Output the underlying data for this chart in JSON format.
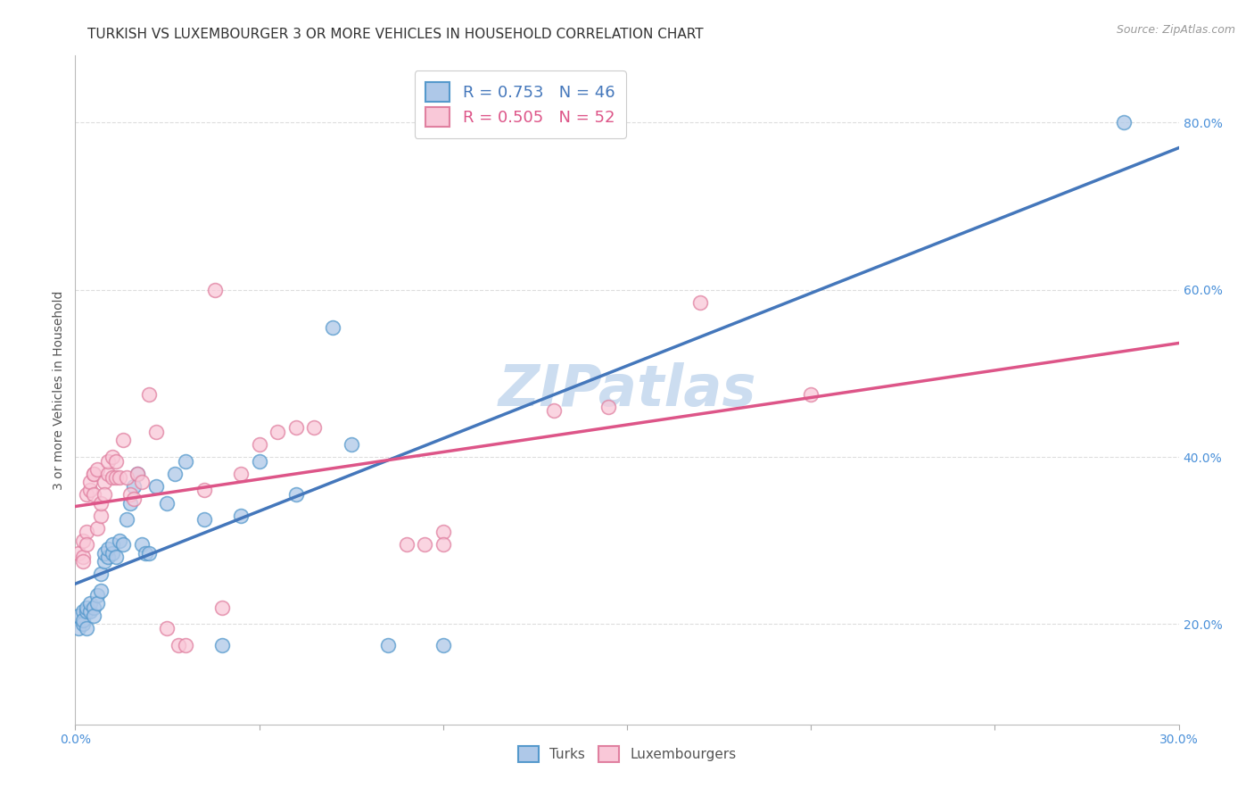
{
  "title": "TURKISH VS LUXEMBOURGER 3 OR MORE VEHICLES IN HOUSEHOLD CORRELATION CHART",
  "source": "Source: ZipAtlas.com",
  "ylabel": "3 or more Vehicles in Household",
  "xlim": [
    0.0,
    0.3
  ],
  "ylim": [
    0.08,
    0.88
  ],
  "xticks": [
    0.0,
    0.05,
    0.1,
    0.15,
    0.2,
    0.25,
    0.3
  ],
  "xticklabels": [
    "0.0%",
    "",
    "",
    "",
    "",
    "",
    "30.0%"
  ],
  "yticks_right": [
    0.2,
    0.4,
    0.6,
    0.8
  ],
  "yticklabels_right": [
    "20.0%",
    "40.0%",
    "60.0%",
    "80.0%"
  ],
  "watermark": "ZIPatlas",
  "legend_turks": "R = 0.753   N = 46",
  "legend_luxembourgers": "R = 0.505   N = 52",
  "turks_fill_color": "#aec8e8",
  "turks_edge_color": "#5599cc",
  "luxembourgers_fill_color": "#f9c8d8",
  "luxembourgers_edge_color": "#e080a0",
  "turks_line_color": "#4477bb",
  "luxembourgers_line_color": "#dd5588",
  "background_color": "#ffffff",
  "grid_color": "#dddddd",
  "turks_scatter": [
    [
      0.001,
      0.195
    ],
    [
      0.001,
      0.21
    ],
    [
      0.002,
      0.215
    ],
    [
      0.002,
      0.2
    ],
    [
      0.002,
      0.205
    ],
    [
      0.003,
      0.215
    ],
    [
      0.003,
      0.22
    ],
    [
      0.003,
      0.195
    ],
    [
      0.004,
      0.215
    ],
    [
      0.004,
      0.225
    ],
    [
      0.005,
      0.22
    ],
    [
      0.005,
      0.21
    ],
    [
      0.006,
      0.235
    ],
    [
      0.006,
      0.225
    ],
    [
      0.007,
      0.24
    ],
    [
      0.007,
      0.26
    ],
    [
      0.008,
      0.275
    ],
    [
      0.008,
      0.285
    ],
    [
      0.009,
      0.28
    ],
    [
      0.009,
      0.29
    ],
    [
      0.01,
      0.285
    ],
    [
      0.01,
      0.295
    ],
    [
      0.011,
      0.28
    ],
    [
      0.012,
      0.3
    ],
    [
      0.013,
      0.295
    ],
    [
      0.014,
      0.325
    ],
    [
      0.015,
      0.345
    ],
    [
      0.016,
      0.365
    ],
    [
      0.017,
      0.38
    ],
    [
      0.018,
      0.295
    ],
    [
      0.019,
      0.285
    ],
    [
      0.02,
      0.285
    ],
    [
      0.022,
      0.365
    ],
    [
      0.025,
      0.345
    ],
    [
      0.027,
      0.38
    ],
    [
      0.03,
      0.395
    ],
    [
      0.035,
      0.325
    ],
    [
      0.04,
      0.175
    ],
    [
      0.045,
      0.33
    ],
    [
      0.05,
      0.395
    ],
    [
      0.06,
      0.355
    ],
    [
      0.07,
      0.555
    ],
    [
      0.075,
      0.415
    ],
    [
      0.085,
      0.175
    ],
    [
      0.1,
      0.175
    ],
    [
      0.285,
      0.8
    ]
  ],
  "luxembourgers_scatter": [
    [
      0.001,
      0.285
    ],
    [
      0.002,
      0.28
    ],
    [
      0.002,
      0.3
    ],
    [
      0.002,
      0.275
    ],
    [
      0.003,
      0.31
    ],
    [
      0.003,
      0.295
    ],
    [
      0.003,
      0.355
    ],
    [
      0.004,
      0.36
    ],
    [
      0.004,
      0.37
    ],
    [
      0.005,
      0.355
    ],
    [
      0.005,
      0.38
    ],
    [
      0.005,
      0.38
    ],
    [
      0.006,
      0.315
    ],
    [
      0.006,
      0.385
    ],
    [
      0.007,
      0.33
    ],
    [
      0.007,
      0.345
    ],
    [
      0.008,
      0.37
    ],
    [
      0.008,
      0.355
    ],
    [
      0.009,
      0.38
    ],
    [
      0.009,
      0.395
    ],
    [
      0.01,
      0.375
    ],
    [
      0.01,
      0.4
    ],
    [
      0.011,
      0.395
    ],
    [
      0.011,
      0.375
    ],
    [
      0.012,
      0.375
    ],
    [
      0.013,
      0.42
    ],
    [
      0.014,
      0.375
    ],
    [
      0.015,
      0.355
    ],
    [
      0.016,
      0.35
    ],
    [
      0.017,
      0.38
    ],
    [
      0.018,
      0.37
    ],
    [
      0.02,
      0.475
    ],
    [
      0.022,
      0.43
    ],
    [
      0.025,
      0.195
    ],
    [
      0.028,
      0.175
    ],
    [
      0.03,
      0.175
    ],
    [
      0.035,
      0.36
    ],
    [
      0.038,
      0.6
    ],
    [
      0.04,
      0.22
    ],
    [
      0.045,
      0.38
    ],
    [
      0.05,
      0.415
    ],
    [
      0.055,
      0.43
    ],
    [
      0.06,
      0.435
    ],
    [
      0.065,
      0.435
    ],
    [
      0.09,
      0.295
    ],
    [
      0.095,
      0.295
    ],
    [
      0.1,
      0.31
    ],
    [
      0.1,
      0.295
    ],
    [
      0.13,
      0.455
    ],
    [
      0.145,
      0.46
    ],
    [
      0.17,
      0.585
    ],
    [
      0.2,
      0.475
    ]
  ],
  "title_fontsize": 11,
  "axis_label_fontsize": 10,
  "tick_fontsize": 10,
  "legend_fontsize": 13,
  "watermark_fontsize": 46,
  "watermark_color": "#ccddf0",
  "source_fontsize": 9
}
